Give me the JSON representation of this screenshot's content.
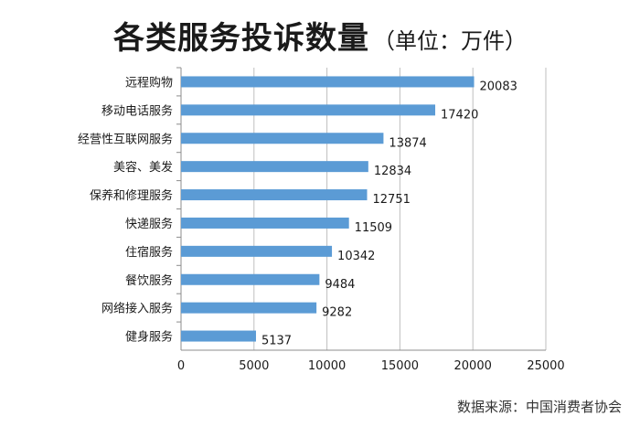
{
  "title": "各类服务投诉数量",
  "subtitle": "（单位：万件）",
  "source": "数据来源：中国消费者协会",
  "colors": {
    "bar": "#5B9BD5",
    "grid": "#bfbfbf",
    "text": "#1a1a1a"
  },
  "chart_data": {
    "type": "bar",
    "orientation": "horizontal",
    "categories": [
      "远程购物",
      "移动电话服务",
      "经营性互联网服务",
      "美容、美发",
      "保养和修理服务",
      "快递服务",
      "住宿服务",
      "餐饮服务",
      "网络接入服务",
      "健身服务"
    ],
    "values": [
      20083,
      17420,
      13874,
      12834,
      12751,
      11509,
      10342,
      9484,
      9282,
      5137
    ],
    "xlim": [
      0,
      25000
    ],
    "xticks": [
      0,
      5000,
      10000,
      15000,
      20000,
      25000
    ],
    "grid": true,
    "data_labels": true
  }
}
